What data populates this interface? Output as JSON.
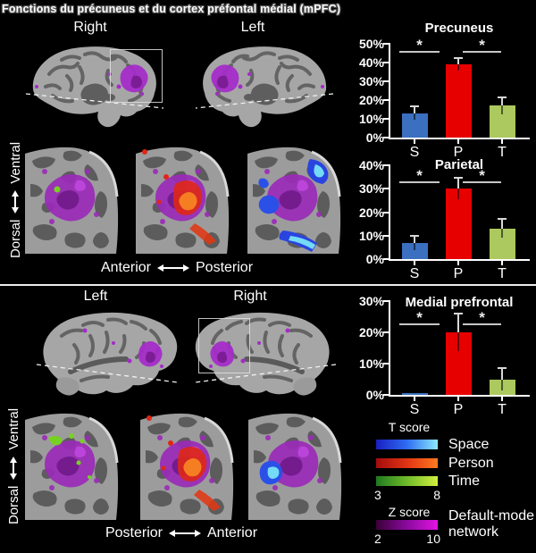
{
  "title": "Fonctions du précuneus et du cortex préfontal médial (mPFC)",
  "top_panel": {
    "hemisphere_labels": [
      "Right",
      "Left"
    ],
    "vertical_axis": {
      "start": "Dorsal",
      "end": "Ventral"
    },
    "horizontal_axis": {
      "start": "Anterior",
      "end": "Posterior"
    }
  },
  "bottom_panel": {
    "hemisphere_labels": [
      "Left",
      "Right"
    ],
    "vertical_axis": {
      "start": "Dorsal",
      "end": "Ventral"
    },
    "horizontal_axis": {
      "start": "Posterior",
      "end": "Anterior"
    }
  },
  "chart_data": [
    {
      "type": "bar",
      "title": "Precuneus",
      "categories": [
        "S",
        "P",
        "T"
      ],
      "values": [
        13,
        39,
        17
      ],
      "errors": [
        3.5,
        3.5,
        4.5
      ],
      "ylim": [
        0,
        50
      ],
      "ytick_step": 10,
      "tick_suffix": "%",
      "bar_colors": [
        "#3b6fc0",
        "#e60000",
        "#abc95e"
      ],
      "significance": [
        {
          "pair": [
            0,
            1
          ],
          "symbol": "*"
        },
        {
          "pair": [
            1,
            2
          ],
          "symbol": "*"
        }
      ]
    },
    {
      "type": "bar",
      "title": "Parietal",
      "categories": [
        "S",
        "P",
        "T"
      ],
      "values": [
        7,
        30,
        13
      ],
      "errors": [
        3,
        4.5,
        4
      ],
      "ylim": [
        0,
        40
      ],
      "ytick_step": 10,
      "tick_suffix": "%",
      "bar_colors": [
        "#3b6fc0",
        "#e60000",
        "#abc95e"
      ],
      "significance": [
        {
          "pair": [
            0,
            1
          ],
          "symbol": "*"
        },
        {
          "pair": [
            1,
            2
          ],
          "symbol": "*"
        }
      ]
    },
    {
      "type": "bar",
      "title": "Medial prefrontal",
      "categories": [
        "S",
        "P",
        "T"
      ],
      "values": [
        0.5,
        20,
        5
      ],
      "errors": [
        0,
        6,
        3.5
      ],
      "ylim": [
        0,
        30
      ],
      "ytick_step": 10,
      "tick_suffix": "%",
      "bar_colors": [
        "#3b6fc0",
        "#e60000",
        "#abc95e"
      ],
      "significance": [
        {
          "pair": [
            0,
            1
          ],
          "symbol": "*"
        },
        {
          "pair": [
            1,
            2
          ],
          "symbol": "*"
        }
      ]
    }
  ],
  "legend": {
    "t_score_label": "T score",
    "t_items": [
      {
        "label": "Space",
        "gradient": [
          "#181fc0",
          "#2f6cf2",
          "#8deaff"
        ]
      },
      {
        "label": "Person",
        "gradient": [
          "#a30c0c",
          "#e03414",
          "#ff7a1e"
        ]
      },
      {
        "label": "Time",
        "gradient": [
          "#1f7a1f",
          "#6fbb2a",
          "#d2ee3e"
        ]
      }
    ],
    "t_scale": {
      "min": "3",
      "max": "8"
    },
    "z_score_label": "Z score",
    "z_item": {
      "label_line1": "Default-mode",
      "label_line2": "network",
      "gradient": [
        "#3a0138",
        "#8a0a9e",
        "#e214e2"
      ]
    },
    "z_scale": {
      "min": "2",
      "max": "10"
    },
    "activation_colors": {
      "space": "#2a44e0",
      "person": "#df2716",
      "time": "#77d220",
      "default_mode": "#9a2ab8"
    }
  }
}
